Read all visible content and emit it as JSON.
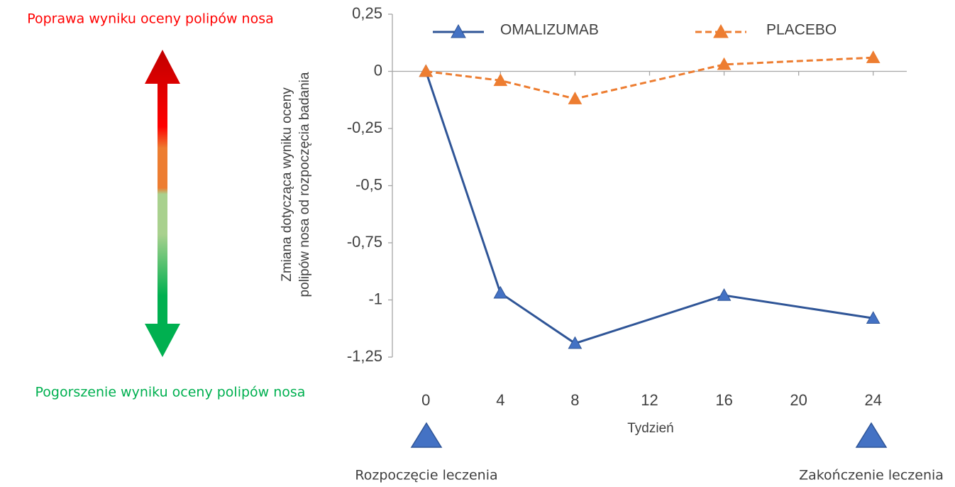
{
  "chart_data": {
    "type": "line",
    "x_label": "Tydzień",
    "y_label": [
      "Zmiana dotycząca wyniku oceny",
      "polipów nosa od rozpoczęcia badania"
    ],
    "x": [
      0,
      4,
      8,
      16,
      24
    ],
    "series": [
      {
        "name": "OMALIZUMAB",
        "color": "#2f5597",
        "marker_color": "#4472c4",
        "dashed": false,
        "values": [
          0,
          -0.97,
          -1.19,
          -0.98,
          -1.08
        ]
      },
      {
        "name": "PLACEBO",
        "color": "#ed7d31",
        "marker_color": "#ed7d31",
        "dashed": true,
        "values": [
          0,
          -0.04,
          -0.12,
          0.03,
          0.06
        ]
      }
    ],
    "xlim": [
      -1.8,
      25.8
    ],
    "xticks": [
      0,
      4,
      8,
      12,
      16,
      20,
      24
    ],
    "ylim": [
      -1.25,
      0.25
    ],
    "yticks": [
      {
        "value": 0.25,
        "label": "0,25"
      },
      0,
      {
        "value": -0.25,
        "label": "-0,25"
      },
      {
        "value": -0.5,
        "label": "-0,5"
      },
      {
        "value": -0.75,
        "label": "-0,75"
      },
      -1,
      {
        "value": -1.25,
        "label": "-1,25"
      }
    ],
    "annotations": {
      "improvement": "Poprawa wyniku oceny polipów nosa",
      "worsening": "Pogorszenie wyniku oceny polipów nosa",
      "start": "Rozpoczęcie leczenia",
      "end": "Zakończenie leczenia"
    }
  }
}
